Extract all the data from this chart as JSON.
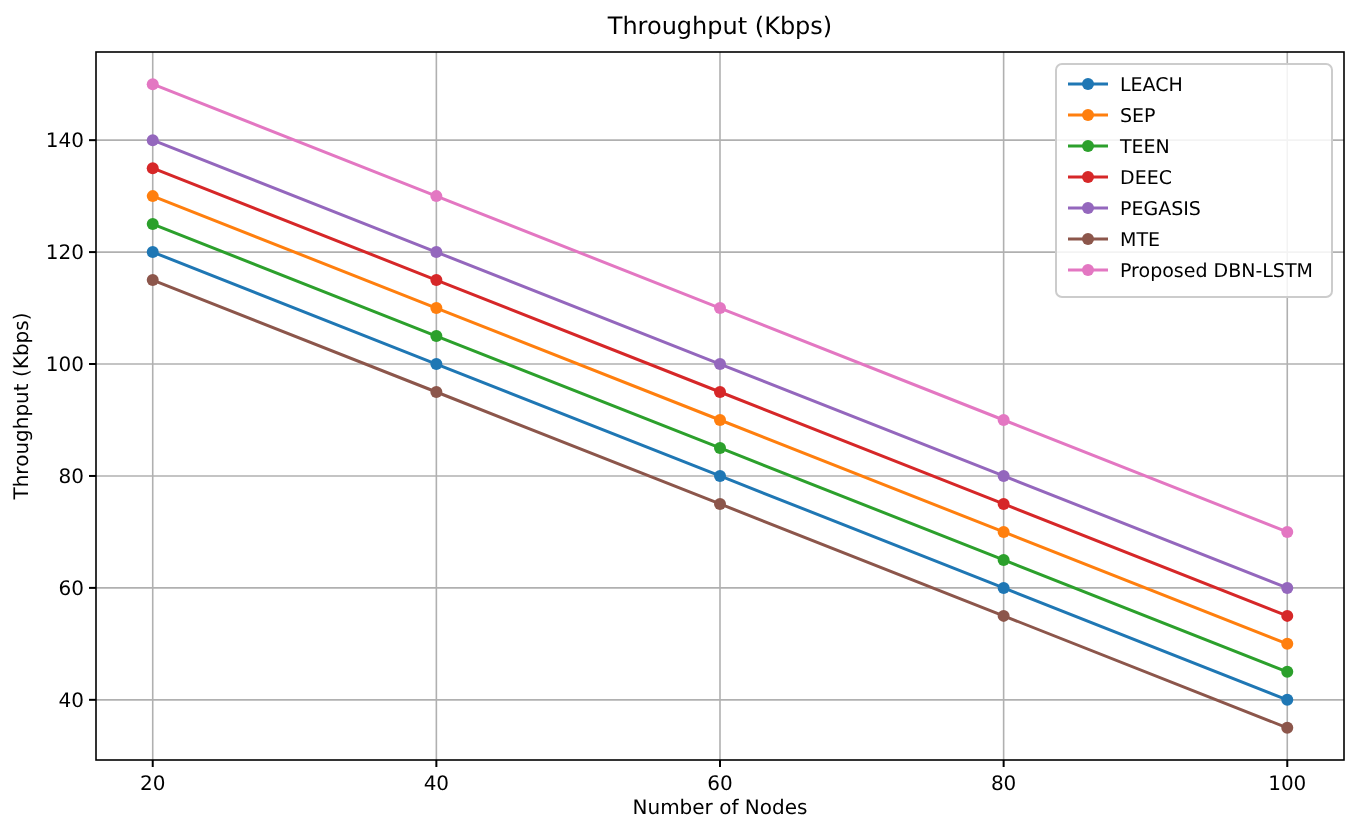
{
  "chart_data": {
    "type": "line",
    "title": "Throughput (Kbps)",
    "xlabel": "Number of Nodes",
    "ylabel": "Throughput (Kbps)",
    "x": [
      20,
      40,
      60,
      80,
      100
    ],
    "series": [
      {
        "name": "LEACH",
        "color": "#1f77b4",
        "values": [
          120,
          100,
          80,
          60,
          40
        ]
      },
      {
        "name": "SEP",
        "color": "#ff7f0e",
        "values": [
          130,
          110,
          90,
          70,
          50
        ]
      },
      {
        "name": "TEEN",
        "color": "#2ca02c",
        "values": [
          125,
          105,
          85,
          65,
          45
        ]
      },
      {
        "name": "DEEC",
        "color": "#d62728",
        "values": [
          135,
          115,
          95,
          75,
          55
        ]
      },
      {
        "name": "PEGASIS",
        "color": "#9467bd",
        "values": [
          140,
          120,
          100,
          80,
          60
        ]
      },
      {
        "name": "MTE",
        "color": "#8c564b",
        "values": [
          115,
          95,
          75,
          55,
          35
        ]
      },
      {
        "name": "Proposed DBN-LSTM",
        "color": "#e377c2",
        "values": [
          150,
          130,
          110,
          90,
          70
        ]
      }
    ],
    "xlim": [
      16,
      104
    ],
    "ylim": [
      29.25,
      155.75
    ],
    "xticks": [
      20,
      40,
      60,
      80,
      100
    ],
    "yticks": [
      40,
      60,
      80,
      100,
      120,
      140
    ],
    "grid": true,
    "legend": "top right",
    "marker": "circle",
    "line_style": "solid"
  }
}
